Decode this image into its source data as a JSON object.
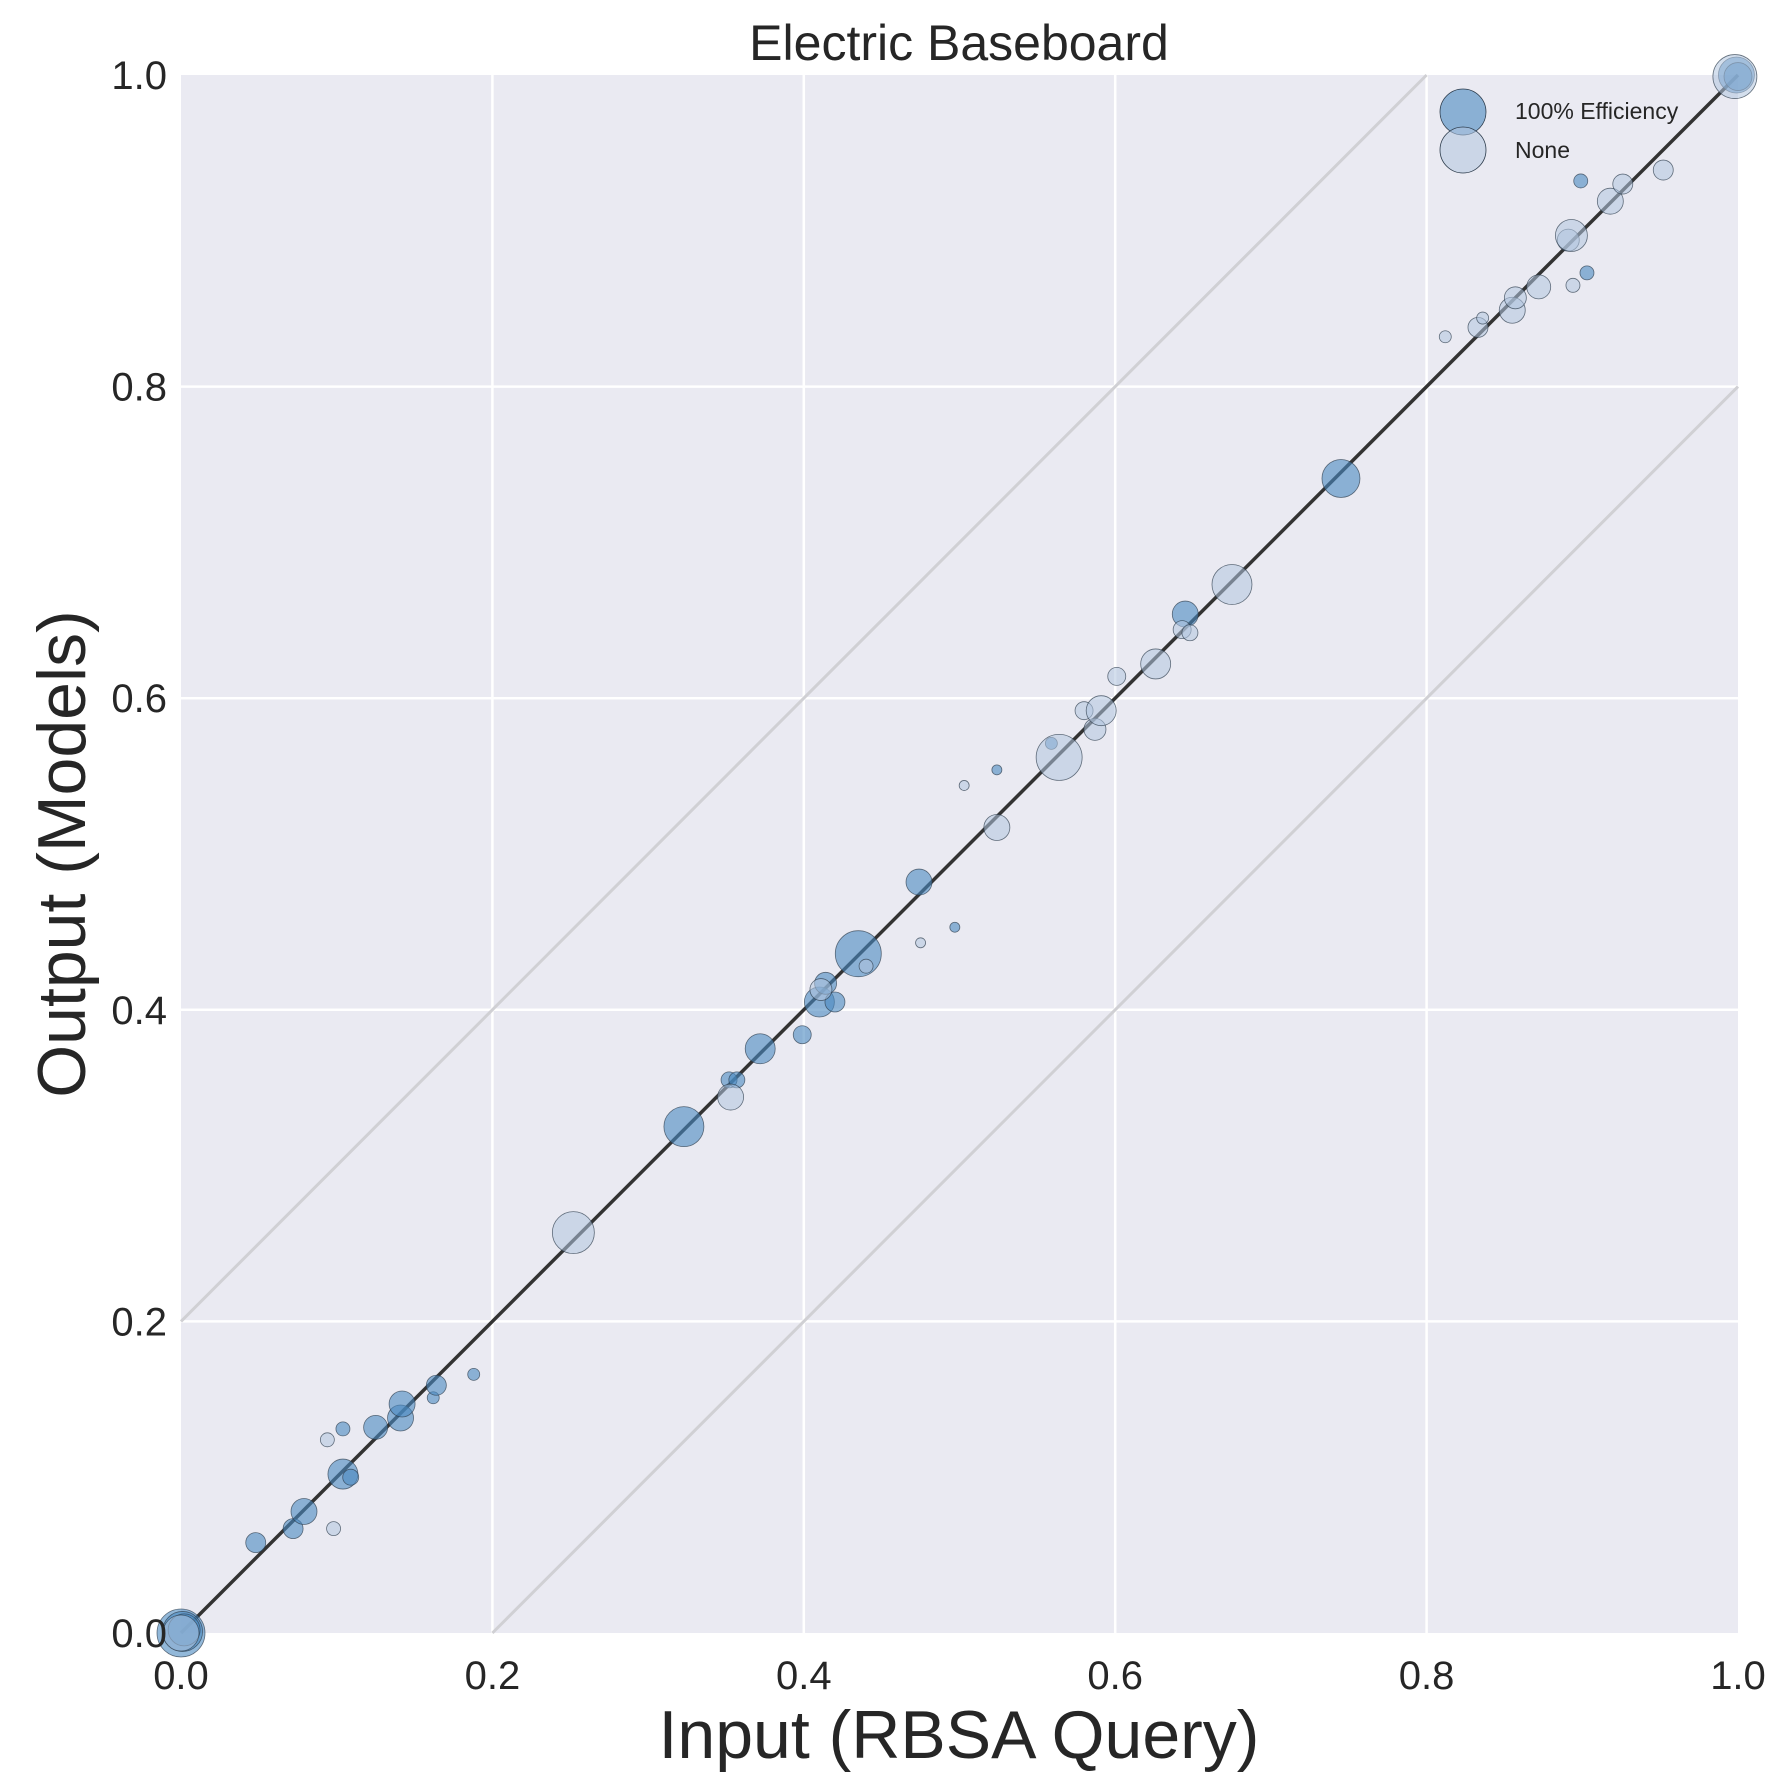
{
  "chart_data": {
    "type": "scatter",
    "title": "Electric Baseboard",
    "xlabel": "Input (RBSA Query)",
    "ylabel": "Output (Models)",
    "xlim": [
      0,
      1
    ],
    "ylim": [
      0,
      1
    ],
    "xticks": [
      "0.0",
      "0.2",
      "0.4",
      "0.6",
      "0.8",
      "1.0"
    ],
    "yticks": [
      "0.0",
      "0.2",
      "0.4",
      "0.6",
      "0.8",
      "1.0"
    ],
    "grid": true,
    "legend_position": "top-right",
    "reference_lines": [
      {
        "role": "identity",
        "points": [
          [
            0,
            0
          ],
          [
            1,
            1
          ]
        ],
        "color": "#333333"
      },
      {
        "role": "upper-band",
        "points": [
          [
            0,
            0.2
          ],
          [
            0.8,
            1.0
          ]
        ],
        "color": "#d0d0d4"
      },
      {
        "role": "lower-band",
        "points": [
          [
            0.2,
            0
          ],
          [
            1.0,
            0.8
          ]
        ],
        "color": "#d0d0d4"
      }
    ],
    "series": [
      {
        "name": "100% Efficiency",
        "color": "#4a89bf",
        "opacity": 0.6,
        "points": [
          {
            "x": 0.0,
            "y": 0.0,
            "s": 24
          },
          {
            "x": 0.001,
            "y": 0.001,
            "s": 20
          },
          {
            "x": 0.002,
            "y": 0.002,
            "s": 16
          },
          {
            "x": 0.048,
            "y": 0.058,
            "s": 10
          },
          {
            "x": 0.072,
            "y": 0.067,
            "s": 10
          },
          {
            "x": 0.079,
            "y": 0.078,
            "s": 13
          },
          {
            "x": 0.104,
            "y": 0.131,
            "s": 7
          },
          {
            "x": 0.104,
            "y": 0.102,
            "s": 15
          },
          {
            "x": 0.109,
            "y": 0.1,
            "s": 8
          },
          {
            "x": 0.125,
            "y": 0.132,
            "s": 12
          },
          {
            "x": 0.141,
            "y": 0.138,
            "s": 13
          },
          {
            "x": 0.142,
            "y": 0.147,
            "s": 13
          },
          {
            "x": 0.162,
            "y": 0.151,
            "s": 6
          },
          {
            "x": 0.164,
            "y": 0.159,
            "s": 10
          },
          {
            "x": 0.188,
            "y": 0.166,
            "s": 6
          },
          {
            "x": 0.323,
            "y": 0.325,
            "s": 20
          },
          {
            "x": 0.352,
            "y": 0.355,
            "s": 8
          },
          {
            "x": 0.357,
            "y": 0.355,
            "s": 8
          },
          {
            "x": 0.372,
            "y": 0.375,
            "s": 15
          },
          {
            "x": 0.399,
            "y": 0.384,
            "s": 9
          },
          {
            "x": 0.41,
            "y": 0.405,
            "s": 15
          },
          {
            "x": 0.414,
            "y": 0.417,
            "s": 11
          },
          {
            "x": 0.42,
            "y": 0.405,
            "s": 10
          },
          {
            "x": 0.435,
            "y": 0.436,
            "s": 23
          },
          {
            "x": 0.474,
            "y": 0.482,
            "s": 13
          },
          {
            "x": 0.497,
            "y": 0.453,
            "s": 5
          },
          {
            "x": 0.524,
            "y": 0.554,
            "s": 5
          },
          {
            "x": 0.559,
            "y": 0.571,
            "s": 6
          },
          {
            "x": 0.645,
            "y": 0.654,
            "s": 13
          },
          {
            "x": 0.745,
            "y": 0.741,
            "s": 19
          },
          {
            "x": 0.899,
            "y": 0.932,
            "s": 7
          },
          {
            "x": 0.903,
            "y": 0.873,
            "s": 7
          },
          {
            "x": 0.999,
            "y": 1.0,
            "s": 18
          },
          {
            "x": 1.0,
            "y": 0.999,
            "s": 14
          }
        ]
      },
      {
        "name": "None",
        "color": "#b0c4de",
        "opacity": 0.55,
        "points": [
          {
            "x": 0.0,
            "y": 0.0,
            "s": 18
          },
          {
            "x": 0.094,
            "y": 0.124,
            "s": 7
          },
          {
            "x": 0.098,
            "y": 0.067,
            "s": 7
          },
          {
            "x": 0.252,
            "y": 0.257,
            "s": 21
          },
          {
            "x": 0.353,
            "y": 0.344,
            "s": 13
          },
          {
            "x": 0.411,
            "y": 0.413,
            "s": 11
          },
          {
            "x": 0.44,
            "y": 0.428,
            "s": 7
          },
          {
            "x": 0.475,
            "y": 0.443,
            "s": 5
          },
          {
            "x": 0.503,
            "y": 0.544,
            "s": 5
          },
          {
            "x": 0.524,
            "y": 0.517,
            "s": 13
          },
          {
            "x": 0.564,
            "y": 0.562,
            "s": 23
          },
          {
            "x": 0.58,
            "y": 0.592,
            "s": 9
          },
          {
            "x": 0.587,
            "y": 0.58,
            "s": 11
          },
          {
            "x": 0.591,
            "y": 0.592,
            "s": 15
          },
          {
            "x": 0.601,
            "y": 0.614,
            "s": 9
          },
          {
            "x": 0.626,
            "y": 0.622,
            "s": 15
          },
          {
            "x": 0.643,
            "y": 0.644,
            "s": 9
          },
          {
            "x": 0.648,
            "y": 0.642,
            "s": 8
          },
          {
            "x": 0.675,
            "y": 0.673,
            "s": 20
          },
          {
            "x": 0.812,
            "y": 0.832,
            "s": 6
          },
          {
            "x": 0.833,
            "y": 0.838,
            "s": 10
          },
          {
            "x": 0.836,
            "y": 0.844,
            "s": 6
          },
          {
            "x": 0.855,
            "y": 0.849,
            "s": 13
          },
          {
            "x": 0.857,
            "y": 0.857,
            "s": 11
          },
          {
            "x": 0.872,
            "y": 0.864,
            "s": 12
          },
          {
            "x": 0.891,
            "y": 0.894,
            "s": 11
          },
          {
            "x": 0.893,
            "y": 0.897,
            "s": 16
          },
          {
            "x": 0.894,
            "y": 0.865,
            "s": 7
          },
          {
            "x": 0.918,
            "y": 0.919,
            "s": 13
          },
          {
            "x": 0.926,
            "y": 0.93,
            "s": 10
          },
          {
            "x": 0.952,
            "y": 0.939,
            "s": 10
          },
          {
            "x": 0.998,
            "y": 0.999,
            "s": 22
          }
        ]
      }
    ]
  }
}
